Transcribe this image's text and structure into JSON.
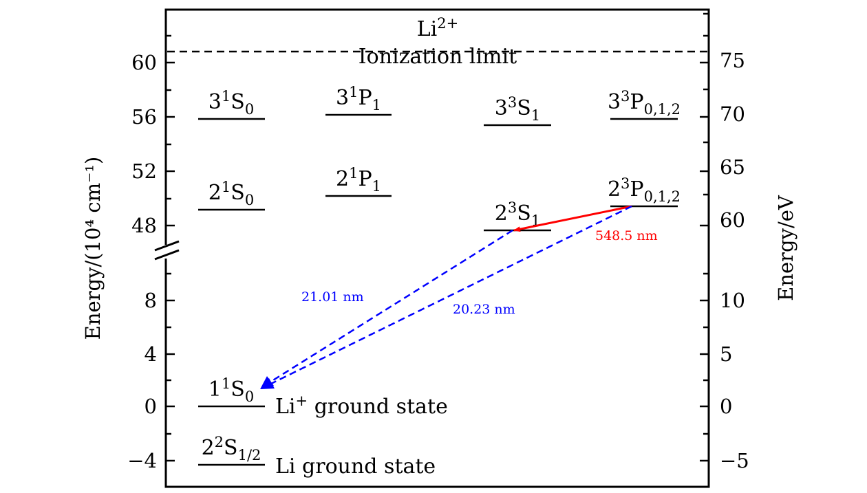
{
  "axes": {
    "left_label": "Energy/(10⁴ cm⁻¹)",
    "right_label": "Energy/eV",
    "left_ticks": [
      "60",
      "56",
      "52",
      "48",
      "8",
      "4",
      "0",
      "−4"
    ],
    "right_ticks": [
      "75",
      "70",
      "65",
      "60",
      "10",
      "5",
      "0",
      "−5"
    ]
  },
  "ionization": {
    "ion": "Li",
    "ion_sup": "2+",
    "label": "Ionization limit"
  },
  "levels": [
    {
      "n": "3",
      "sup": "1",
      "L": "S",
      "sub": "0"
    },
    {
      "n": "3",
      "sup": "1",
      "L": "P",
      "sub": "1"
    },
    {
      "n": "3",
      "sup": "3",
      "L": "S",
      "sub": "1"
    },
    {
      "n": "3",
      "sup": "3",
      "L": "P",
      "sub": "0,1,2"
    },
    {
      "n": "2",
      "sup": "1",
      "L": "S",
      "sub": "0"
    },
    {
      "n": "2",
      "sup": "1",
      "L": "P",
      "sub": "1"
    },
    {
      "n": "2",
      "sup": "3",
      "L": "S",
      "sub": "1"
    },
    {
      "n": "2",
      "sup": "3",
      "L": "P",
      "sub": "0,1,2"
    },
    {
      "n": "1",
      "sup": "1",
      "L": "S",
      "sub": "0"
    },
    {
      "n": "2",
      "sup": "2",
      "L": "S",
      "sub": "1/2"
    }
  ],
  "ground": {
    "li_plus": "Li",
    "li_plus_sup": "+",
    "li_plus_text": "ground state",
    "li_text": "Li ground state"
  },
  "transitions": [
    {
      "label": "548.5 nm",
      "color": "#ff0000"
    },
    {
      "label": "21.01 nm",
      "color": "#0000ff"
    },
    {
      "label": "20.23 nm",
      "color": "#0000ff"
    }
  ]
}
